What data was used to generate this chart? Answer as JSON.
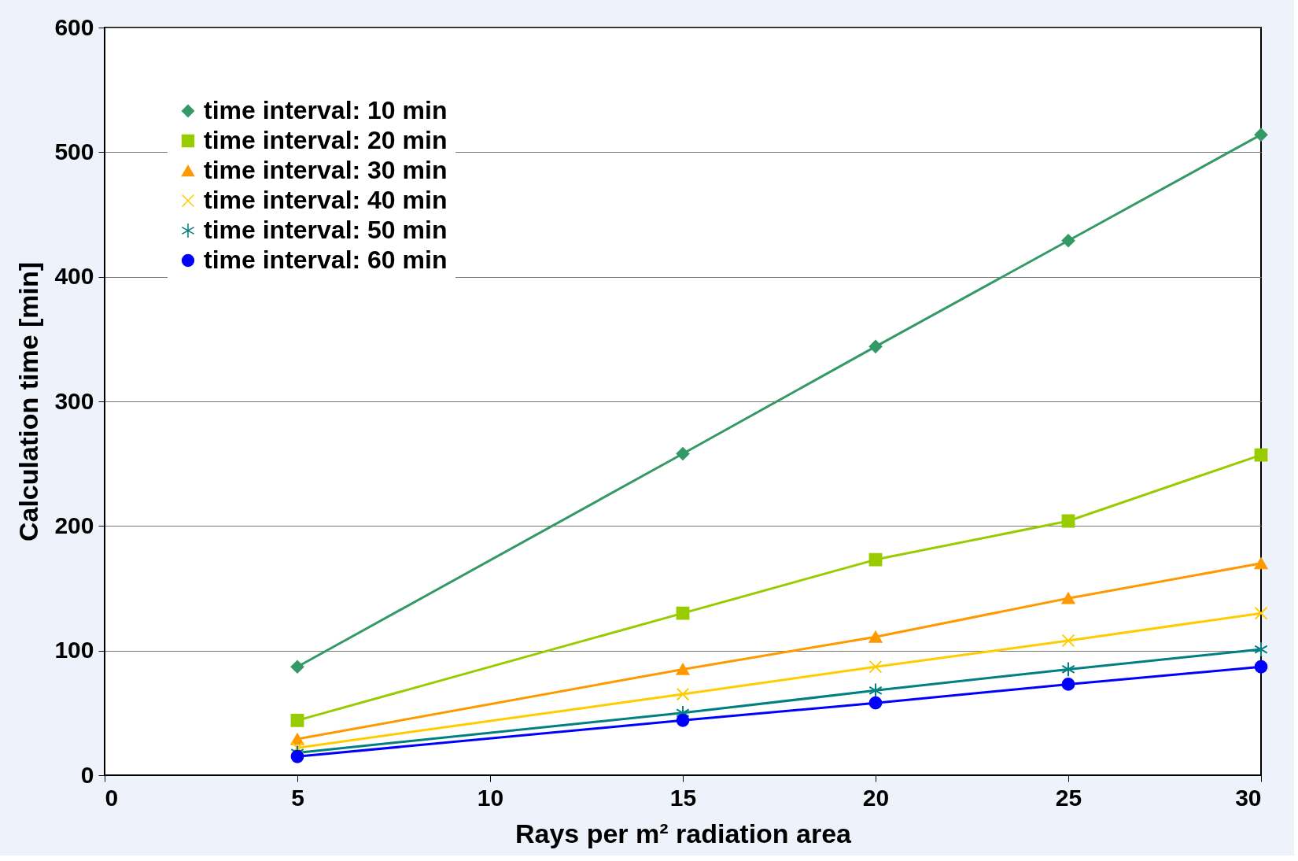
{
  "chart_data": {
    "type": "line",
    "xlabel": "Rays per m² radiation area",
    "ylabel": "Calculation time [min]",
    "x": [
      5,
      15,
      20,
      25,
      30
    ],
    "series": [
      {
        "name": "time interval: 10 min",
        "color": "#339966",
        "marker": "diamond",
        "values": [
          87,
          258,
          344,
          429,
          514
        ]
      },
      {
        "name": "time interval: 20 min",
        "color": "#99cc00",
        "marker": "square",
        "values": [
          44,
          130,
          173,
          204,
          257
        ]
      },
      {
        "name": "time interval: 30 min",
        "color": "#ff9900",
        "marker": "triangle",
        "values": [
          29,
          85,
          111,
          142,
          170
        ]
      },
      {
        "name": "time interval: 40 min",
        "color": "#ffcc00",
        "marker": "cross",
        "values": [
          22,
          65,
          87,
          108,
          130
        ]
      },
      {
        "name": "time interval: 50 min",
        "color": "#008080",
        "marker": "cross",
        "values": [
          18,
          50,
          68,
          85,
          101
        ]
      },
      {
        "name": "time interval: 60 min",
        "color": "#0000ff",
        "marker": "circle",
        "values": [
          15,
          44,
          58,
          73,
          87
        ]
      }
    ],
    "xlim": [
      0,
      30
    ],
    "xticks": [
      0,
      5,
      10,
      15,
      20,
      25,
      30
    ],
    "ylim": [
      0,
      600
    ],
    "yticks": [
      0,
      100,
      200,
      300,
      400,
      500,
      600
    ],
    "grid": "y",
    "legend": "top left",
    "line_style": "solid"
  }
}
